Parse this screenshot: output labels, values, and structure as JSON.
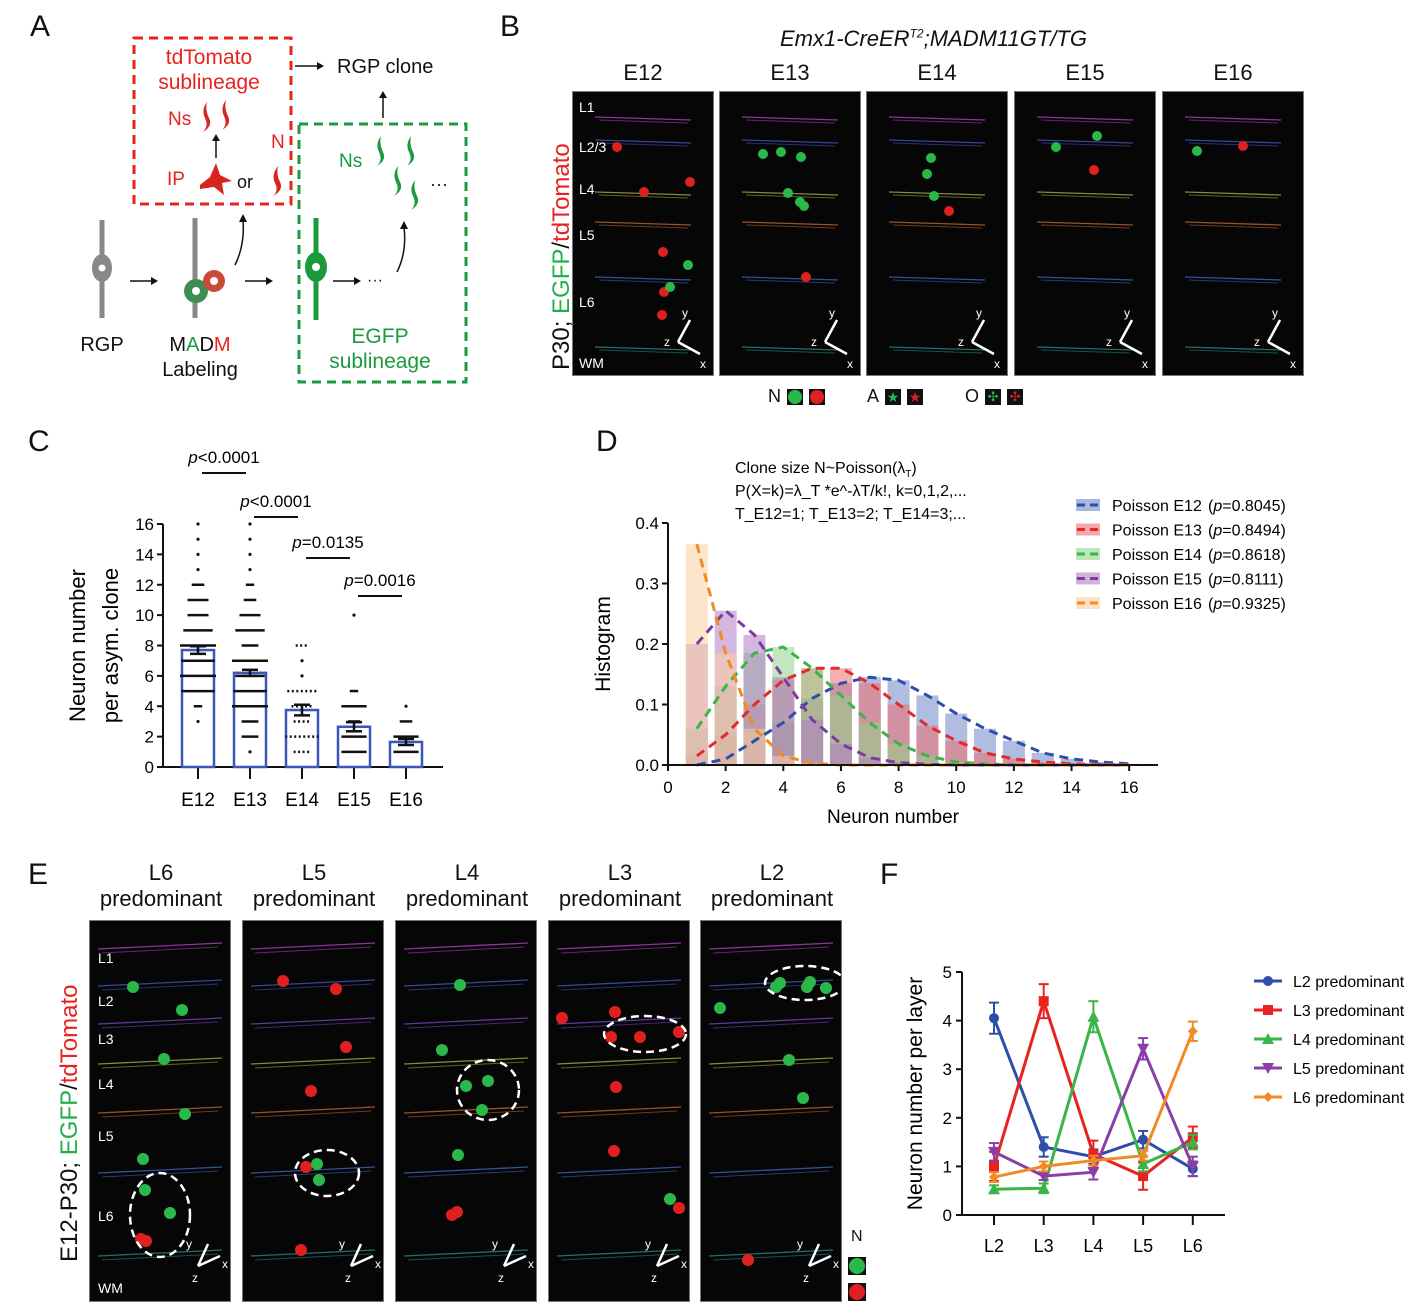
{
  "panels": {
    "A": {
      "letter": "A",
      "tdtomato_title_1": "tdTomato",
      "tdtomato_title_2": "sublineage",
      "ns_red": "Ns",
      "n_red": "N",
      "ip": "IP",
      "or": "or",
      "rgp_clone": "RGP clone",
      "ns_green": "Ns",
      "ellipsis": "···",
      "egfp_title_1": "EGFP",
      "egfp_title_2": "sublineage",
      "rgp": "RGP",
      "madm_m1": "M",
      "madm_a": "A",
      "madm_d": "D",
      "madm_m2": "M",
      "labeling": "Labeling",
      "colors": {
        "red": "#e8231f",
        "green": "#1a9a3c",
        "gray": "#888888"
      }
    },
    "B": {
      "letter": "B",
      "genotype_main": "Emx1-CreER",
      "genotype_sup": "T2",
      "genotype_rest": ";MADM11GT/TG",
      "ylabel_1": "P30; ",
      "ylabel_2": "EGFP",
      "ylabel_3": "/",
      "ylabel_4": "tdTomato",
      "columns": [
        "E12",
        "E13",
        "E14",
        "E15",
        "E16"
      ],
      "layer_labels": [
        "L1",
        "L2/3",
        "L4",
        "L5",
        "L6",
        "WM"
      ],
      "legend": [
        {
          "label": "N",
          "type": "neuron"
        },
        {
          "label": "A",
          "type": "astrocyte"
        },
        {
          "label": "O",
          "type": "oligodendrocyte"
        }
      ],
      "axis_labels": {
        "x": "x",
        "y": "y",
        "z": "z"
      }
    },
    "E": {
      "letter": "E",
      "ylabel_1": "E12-P30; ",
      "ylabel_2": "EGFP",
      "ylabel_3": "/",
      "ylabel_4": "tdTomato",
      "columns": [
        {
          "top": "L6",
          "bottom": "predominant"
        },
        {
          "top": "L5",
          "bottom": "predominant"
        },
        {
          "top": "L4",
          "bottom": "predominant"
        },
        {
          "top": "L3",
          "bottom": "predominant"
        },
        {
          "top": "L2",
          "bottom": "predominant"
        }
      ],
      "layer_labels": [
        "L1",
        "L2",
        "L3",
        "L4",
        "L5",
        "L6",
        "WM"
      ],
      "legend_label": "N"
    }
  },
  "chart_data": [
    {
      "id": "C",
      "letter": "C",
      "type": "bar",
      "title": "",
      "xlabel": "",
      "ylabel_1": "Neuron number",
      "ylabel_2": "per asym. clone",
      "categories": [
        "E12",
        "E13",
        "E14",
        "E15",
        "E16"
      ],
      "values": [
        7.7,
        6.2,
        3.75,
        2.65,
        1.65
      ],
      "sem": [
        0.25,
        0.2,
        0.35,
        0.3,
        0.2
      ],
      "ylim": [
        0,
        16
      ],
      "yticks": [
        0,
        2,
        4,
        6,
        8,
        10,
        12,
        14,
        16
      ],
      "bar_color": "#3a56b8",
      "points": {
        "E12": [
          [
            3,
            1
          ],
          [
            4,
            2
          ],
          [
            5,
            8
          ],
          [
            6,
            9
          ],
          [
            7,
            8
          ],
          [
            8,
            12
          ],
          [
            9,
            7
          ],
          [
            10,
            5
          ],
          [
            11,
            5
          ],
          [
            12,
            3
          ],
          [
            13,
            1
          ],
          [
            14,
            1
          ],
          [
            15,
            1
          ],
          [
            16,
            1
          ]
        ],
        "E13": [
          [
            1,
            1
          ],
          [
            2,
            4
          ],
          [
            3,
            4
          ],
          [
            4,
            10
          ],
          [
            5,
            8
          ],
          [
            6,
            7
          ],
          [
            7,
            10
          ],
          [
            8,
            4
          ],
          [
            9,
            7
          ],
          [
            10,
            5
          ],
          [
            11,
            3
          ],
          [
            12,
            2
          ],
          [
            13,
            1
          ],
          [
            14,
            1
          ],
          [
            15,
            1
          ],
          [
            16,
            1
          ]
        ],
        "E14": [
          [
            1,
            4
          ],
          [
            2,
            8
          ],
          [
            3,
            4
          ],
          [
            4,
            5
          ],
          [
            5,
            7
          ],
          [
            6,
            1
          ],
          [
            7,
            1
          ],
          [
            8,
            3
          ]
        ],
        "E15": [
          [
            1,
            6
          ],
          [
            2,
            6
          ],
          [
            3,
            3
          ],
          [
            4,
            6
          ],
          [
            5,
            2
          ],
          [
            10,
            1
          ]
        ],
        "E16": [
          [
            1,
            6
          ],
          [
            2,
            6
          ],
          [
            3,
            3
          ],
          [
            4,
            1
          ]
        ]
      },
      "comparisons": [
        {
          "from": "E12",
          "to": "E13",
          "label_p": "p",
          "label_rest": "<0.0001",
          "level": 3
        },
        {
          "from": "E13",
          "to": "E14",
          "label_p": "p",
          "label_rest": "<0.0001",
          "level": 2
        },
        {
          "from": "E14",
          "to": "E15",
          "label_p": "p",
          "label_rest": "=0.0135",
          "level": 1
        },
        {
          "from": "E15",
          "to": "E16",
          "label_p": "p",
          "label_rest": "=0.0016",
          "level": 0
        }
      ]
    },
    {
      "id": "D",
      "letter": "D",
      "type": "bar",
      "title": "",
      "annotation_1": "Clone size N~Poisson(λ",
      "annotation_1_sub": "T",
      "annotation_1_end": ")",
      "annotation_2": "P(X=k)=λ_T *e^-λT/k!, k=0,1,2,...",
      "annotation_3": "T_E12=1; T_E13=2; T_E14=3;...",
      "xlabel": "Neuron number",
      "ylabel": "Histogram",
      "xlim": [
        0,
        17
      ],
      "ylim": [
        0,
        0.4
      ],
      "xticks": [
        0,
        2,
        4,
        6,
        8,
        10,
        12,
        14,
        16
      ],
      "yticks": [
        0.0,
        0.1,
        0.2,
        0.3,
        0.4
      ],
      "x": [
        1,
        2,
        3,
        4,
        5,
        6,
        7,
        8,
        9,
        10,
        11,
        12,
        13,
        14,
        15,
        16
      ],
      "series": [
        {
          "name": "Poisson E12",
          "p_label": "p",
          "p_value": "=0.8045",
          "color": "#2e4fa8",
          "fill": "#6f87c8",
          "values": [
            0.0,
            0.01,
            0.04,
            0.07,
            0.11,
            0.135,
            0.145,
            0.14,
            0.115,
            0.085,
            0.06,
            0.04,
            0.02,
            0.01,
            0.005,
            0.002
          ]
        },
        {
          "name": "Poisson E13",
          "p_label": "p",
          "p_value": "=0.8494",
          "color": "#e32b2b",
          "fill": "#ee6e6e",
          "values": [
            0.015,
            0.05,
            0.1,
            0.14,
            0.16,
            0.16,
            0.135,
            0.1,
            0.065,
            0.04,
            0.02,
            0.01,
            0.005,
            0.002,
            0.001,
            0.0
          ]
        },
        {
          "name": "Poisson E14",
          "p_label": "p",
          "p_value": "=0.8618",
          "color": "#3bb54a",
          "fill": "#8fd48a",
          "values": [
            0.06,
            0.13,
            0.185,
            0.195,
            0.16,
            0.115,
            0.07,
            0.035,
            0.015,
            0.005,
            0.002,
            0.0,
            0.0,
            0.0,
            0.0,
            0.0
          ]
        },
        {
          "name": "Poisson E15",
          "p_label": "p",
          "p_value": "=0.8111",
          "color": "#7b3c9e",
          "fill": "#b07cc6",
          "values": [
            0.2,
            0.255,
            0.215,
            0.145,
            0.075,
            0.035,
            0.012,
            0.004,
            0.001,
            0.0,
            0.0,
            0.0,
            0.0,
            0.0,
            0.0,
            0.0
          ]
        },
        {
          "name": "Poisson E16",
          "p_label": "p",
          "p_value": "=0.9325",
          "color": "#f28a24",
          "fill": "#fbcfa0",
          "values": [
            0.365,
            0.185,
            0.06,
            0.015,
            0.003,
            0.0,
            0.0,
            0.0,
            0.0,
            0.0,
            0.0,
            0.0,
            0.0,
            0.0,
            0.0,
            0.0
          ]
        }
      ],
      "legend_position": "right"
    },
    {
      "id": "F",
      "letter": "F",
      "type": "line",
      "xlabel": "",
      "ylabel": "Neuron number per layer",
      "categories": [
        "L2",
        "L3",
        "L4",
        "L5",
        "L6"
      ],
      "ylim": [
        0,
        5
      ],
      "yticks": [
        0,
        1,
        2,
        3,
        4,
        5
      ],
      "legend_position": "right",
      "series": [
        {
          "name": "L2 predominant",
          "marker": "circle",
          "color": "#2e4fa8",
          "values": [
            4.05,
            1.4,
            1.2,
            1.55,
            0.95
          ],
          "err": [
            0.32,
            0.2,
            0.15,
            0.18,
            0.15
          ]
        },
        {
          "name": "L3 predominant",
          "marker": "square",
          "color": "#e8231f",
          "values": [
            1.0,
            4.4,
            1.25,
            0.8,
            1.6
          ],
          "err": [
            0.3,
            0.35,
            0.28,
            0.28,
            0.22
          ]
        },
        {
          "name": "L4 predominant",
          "marker": "triangle-up",
          "color": "#3bb54a",
          "values": [
            0.53,
            0.55,
            4.08,
            1.05,
            1.5
          ],
          "err": [
            0.08,
            0.1,
            0.32,
            0.15,
            0.15
          ]
        },
        {
          "name": "L5 predominant",
          "marker": "triangle-down",
          "color": "#8a3fa8",
          "values": [
            1.3,
            0.8,
            0.88,
            3.42,
            1.0
          ],
          "err": [
            0.18,
            0.08,
            0.15,
            0.22,
            0.2
          ]
        },
        {
          "name": "L6 predominant",
          "marker": "diamond",
          "color": "#f28a24",
          "values": [
            0.78,
            1.0,
            1.12,
            1.22,
            3.78
          ],
          "err": [
            0.1,
            0.1,
            0.1,
            0.1,
            0.2
          ]
        }
      ]
    }
  ]
}
